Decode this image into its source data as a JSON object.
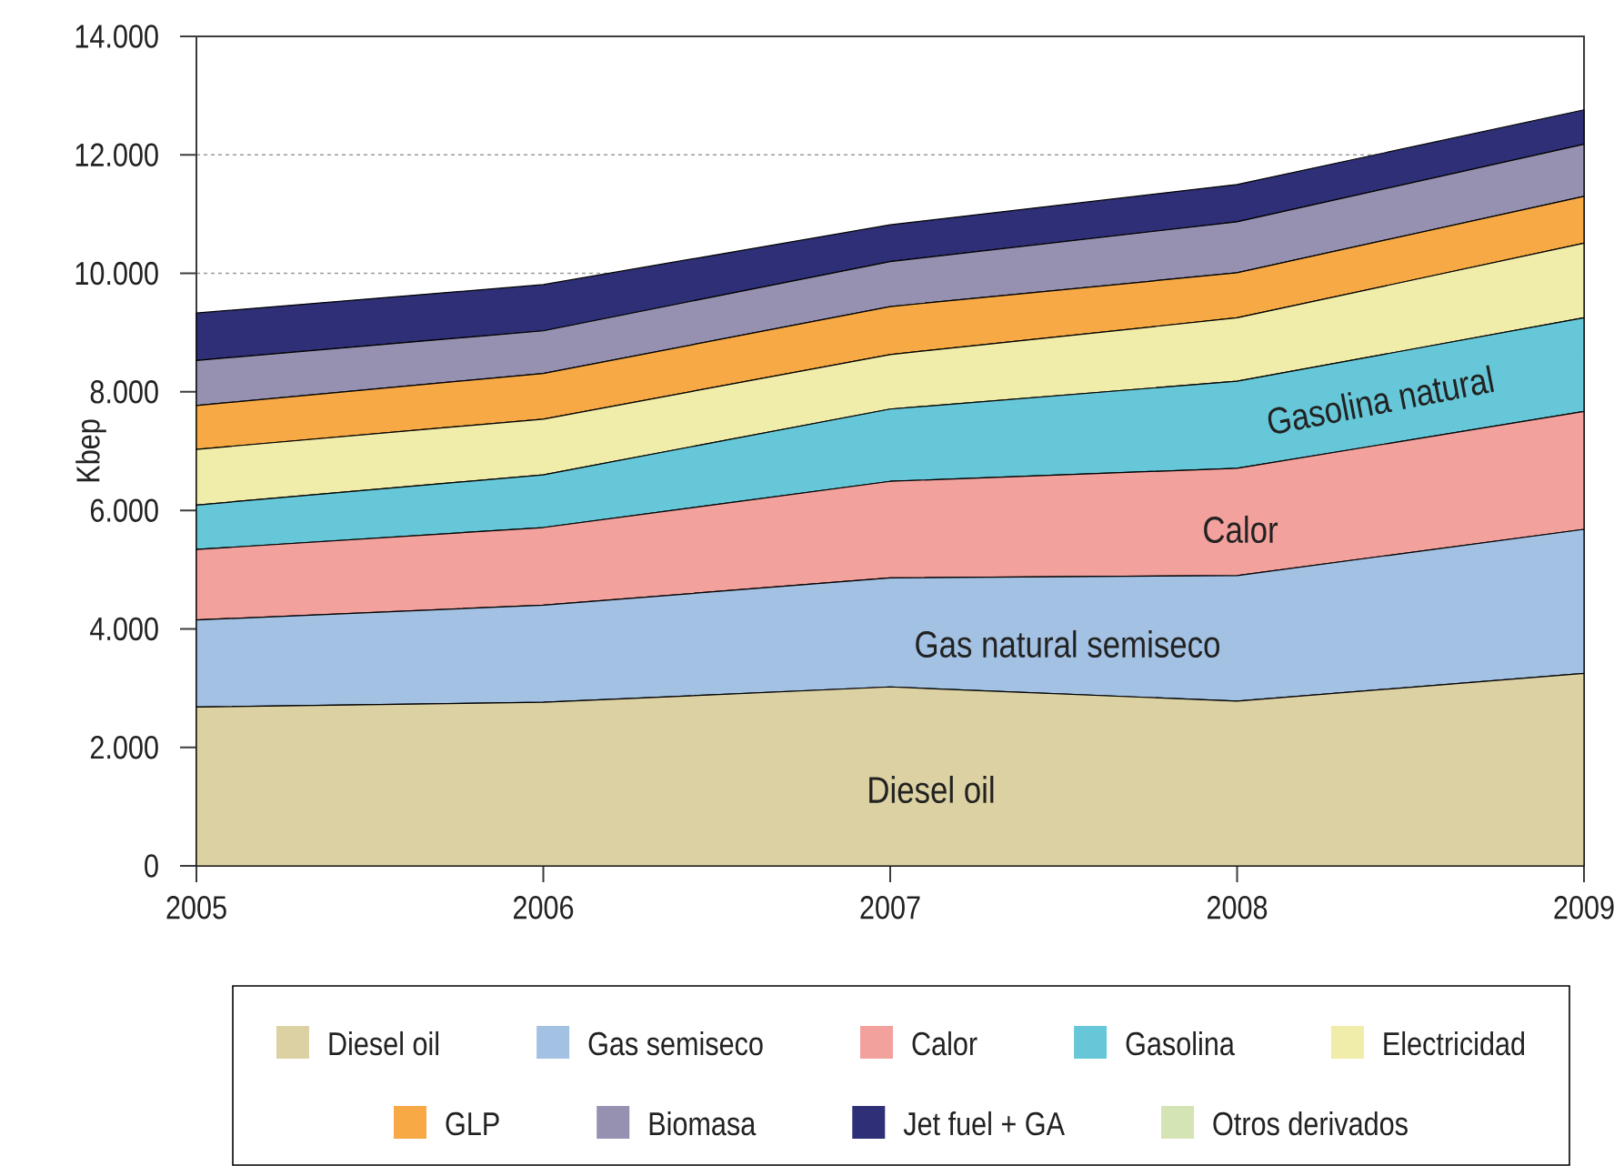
{
  "chart_data": {
    "type": "area",
    "stacked": true,
    "ylabel": "Kbep",
    "x": [
      2005,
      2006,
      2007,
      2008,
      2009
    ],
    "xlim": [
      2005,
      2009
    ],
    "xticks": [
      2005,
      2006,
      2007,
      2008,
      2009
    ],
    "ylim": [
      0,
      14000
    ],
    "yticks": [
      0,
      {
        "value": 2000,
        "label": "2.000"
      },
      {
        "value": 4000,
        "label": "4.000"
      },
      {
        "value": 6000,
        "label": "6.000"
      },
      {
        "value": 8000,
        "label": "8.000"
      },
      {
        "value": 10000,
        "label": "10.000"
      },
      {
        "value": 12000,
        "label": "12.000"
      },
      {
        "value": 14000,
        "label": "14.000"
      }
    ],
    "grid": "y",
    "legend": "bottom",
    "series": [
      {
        "name": "Diesel oil",
        "color": "#dcd1a3",
        "values": [
          2680,
          2760,
          3020,
          2780,
          3250
        ]
      },
      {
        "name": "Gas semiseco",
        "color": "#a3c1e3",
        "values": [
          1470,
          1640,
          1840,
          2120,
          2430
        ]
      },
      {
        "name": "Calor",
        "color": "#f2a19d",
        "values": [
          1190,
          1310,
          1630,
          1810,
          1990
        ]
      },
      {
        "name": "Gasolina",
        "color": "#66c7d8",
        "values": [
          750,
          890,
          1220,
          1470,
          1580
        ]
      },
      {
        "name": "Electricidad",
        "color": "#f0eca9",
        "values": [
          940,
          940,
          920,
          1070,
          1260
        ]
      },
      {
        "name": "GLP",
        "color": "#f6a945",
        "values": [
          740,
          770,
          810,
          760,
          790
        ]
      },
      {
        "name": "Biomasa",
        "color": "#9691b1",
        "values": [
          760,
          720,
          760,
          860,
          880
        ]
      },
      {
        "name": "Jet fuel + GA",
        "color": "#2e2f77",
        "values": [
          800,
          780,
          620,
          630,
          580
        ]
      },
      {
        "name": "Otros derivados",
        "color": "#d5e4b4",
        "values": [
          null,
          null,
          null,
          null,
          null
        ]
      }
    ],
    "annotations": [
      "Diesel oil",
      "Gas natural semiseco",
      "Calor",
      "Gasolina natural"
    ]
  }
}
